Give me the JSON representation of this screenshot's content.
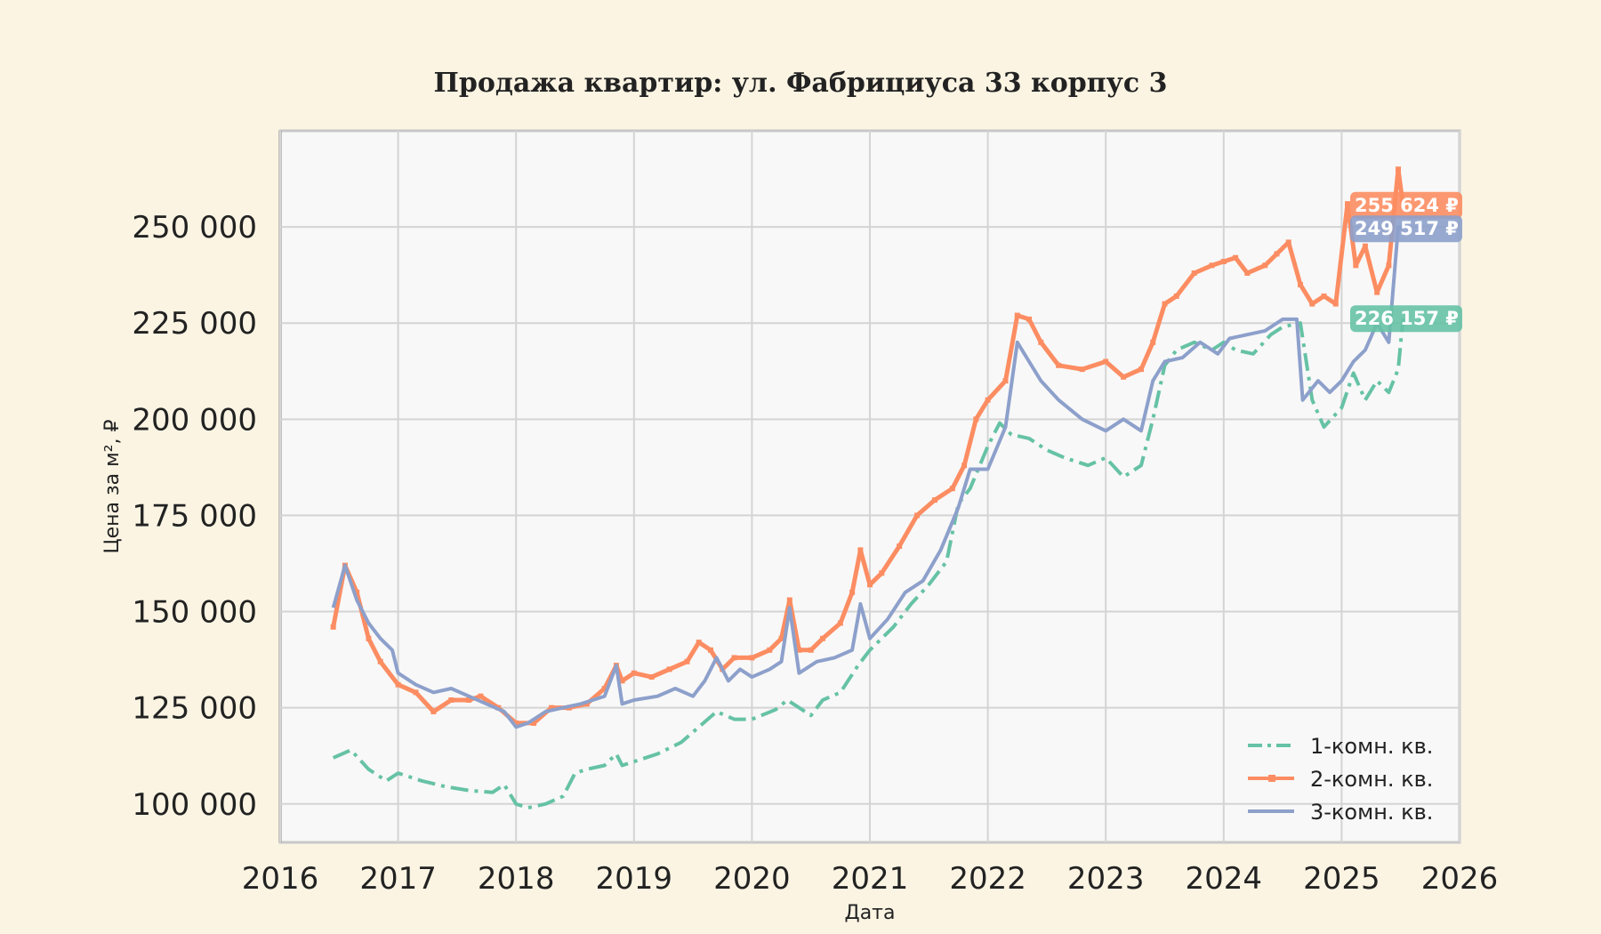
{
  "chart_data": {
    "type": "line",
    "title": "Продажа квартир: ул. Фабрициуса 33 корпус 3",
    "xlabel": "Дата",
    "ylabel": "Цена за м², ₽",
    "xlim": [
      2016,
      2026
    ],
    "ylim": [
      90000,
      275000
    ],
    "x_ticks": [
      "2016",
      "2017",
      "2018",
      "2019",
      "2020",
      "2021",
      "2022",
      "2023",
      "2024",
      "2025",
      "2026"
    ],
    "y_ticks": [
      "100 000",
      "125 000",
      "150 000",
      "175 000",
      "200 000",
      "225 000",
      "250 000"
    ],
    "grid": true,
    "legend_position": "bottom-right",
    "series": [
      {
        "name": "1-комн. кв.",
        "color": "#66c2a5",
        "style": "dashdot",
        "end_label": "226 157 ₽",
        "end_value": 226157,
        "x": [
          2016.45,
          2016.6,
          2016.75,
          2016.9,
          2017.0,
          2017.2,
          2017.4,
          2017.6,
          2017.8,
          2017.9,
          2018.0,
          2018.1,
          2018.25,
          2018.4,
          2018.5,
          2018.6,
          2018.75,
          2018.85,
          2018.9,
          2019.0,
          2019.2,
          2019.4,
          2019.55,
          2019.7,
          2019.85,
          2020.0,
          2020.2,
          2020.3,
          2020.4,
          2020.5,
          2020.6,
          2020.75,
          2020.9,
          2021.0,
          2021.1,
          2021.2,
          2021.35,
          2021.5,
          2021.65,
          2021.75,
          2021.85,
          2022.0,
          2022.1,
          2022.2,
          2022.35,
          2022.5,
          2022.65,
          2022.85,
          2023.0,
          2023.15,
          2023.3,
          2023.4,
          2023.5,
          2023.6,
          2023.75,
          2023.9,
          2024.0,
          2024.1,
          2024.25,
          2024.4,
          2024.5,
          2024.65,
          2024.75,
          2024.85,
          2025.0,
          2025.1,
          2025.2,
          2025.3,
          2025.4,
          2025.48,
          2025.52
        ],
        "y": [
          112000,
          114000,
          109000,
          106000,
          108000,
          106000,
          104500,
          103500,
          103000,
          105000,
          100000,
          99000,
          100000,
          102000,
          108000,
          109000,
          110000,
          113000,
          110000,
          111000,
          113000,
          116000,
          120000,
          124000,
          122000,
          122000,
          124500,
          127000,
          125000,
          123000,
          127000,
          129000,
          136000,
          140000,
          143000,
          146000,
          152000,
          157000,
          163000,
          178000,
          182000,
          193000,
          199000,
          196000,
          195000,
          192000,
          190000,
          188000,
          190000,
          185000,
          188000,
          200000,
          214000,
          218000,
          220000,
          218000,
          220000,
          218000,
          217000,
          222000,
          224000,
          225000,
          205000,
          198000,
          203000,
          212000,
          205000,
          210000,
          207000,
          213000,
          226157
        ]
      },
      {
        "name": "2-комн. кв.",
        "color": "#fc8d62",
        "style": "solid-marker",
        "end_label": "255 624 ₽",
        "end_value": 255624,
        "x": [
          2016.45,
          2016.55,
          2016.65,
          2016.75,
          2016.85,
          2017.0,
          2017.15,
          2017.3,
          2017.45,
          2017.6,
          2017.7,
          2017.85,
          2018.0,
          2018.15,
          2018.3,
          2018.45,
          2018.6,
          2018.75,
          2018.85,
          2018.9,
          2019.0,
          2019.15,
          2019.3,
          2019.45,
          2019.55,
          2019.65,
          2019.75,
          2019.85,
          2020.0,
          2020.15,
          2020.25,
          2020.32,
          2020.4,
          2020.5,
          2020.6,
          2020.75,
          2020.85,
          2020.92,
          2021.0,
          2021.1,
          2021.25,
          2021.4,
          2021.55,
          2021.7,
          2021.8,
          2021.9,
          2022.0,
          2022.15,
          2022.25,
          2022.35,
          2022.45,
          2022.6,
          2022.8,
          2023.0,
          2023.15,
          2023.3,
          2023.4,
          2023.5,
          2023.6,
          2023.75,
          2023.9,
          2024.0,
          2024.1,
          2024.2,
          2024.35,
          2024.45,
          2024.55,
          2024.65,
          2024.75,
          2024.85,
          2024.95,
          2025.05,
          2025.12,
          2025.2,
          2025.3,
          2025.4,
          2025.48,
          2025.52
        ],
        "y": [
          146000,
          162000,
          155000,
          143000,
          137000,
          131000,
          129000,
          124000,
          127000,
          127000,
          128000,
          125000,
          121000,
          121000,
          125000,
          125000,
          126000,
          130000,
          136000,
          132000,
          134000,
          133000,
          135000,
          137000,
          142000,
          140000,
          135000,
          138000,
          138000,
          140000,
          143000,
          153000,
          140000,
          140000,
          143000,
          147000,
          155000,
          166000,
          157000,
          160000,
          167000,
          175000,
          179000,
          182000,
          188000,
          200000,
          205000,
          210000,
          227000,
          226000,
          220000,
          214000,
          213000,
          215000,
          211000,
          213000,
          220000,
          230000,
          232000,
          238000,
          240000,
          241000,
          242000,
          238000,
          240000,
          243000,
          246000,
          235000,
          230000,
          232000,
          230000,
          256000,
          240000,
          245000,
          233000,
          240000,
          265000,
          255624
        ]
      },
      {
        "name": "3-комн. кв.",
        "color": "#8da0cb",
        "style": "solid",
        "end_label": "249 517 ₽",
        "end_value": 249517,
        "x": [
          2016.45,
          2016.55,
          2016.65,
          2016.75,
          2016.85,
          2016.95,
          2017.0,
          2017.15,
          2017.3,
          2017.45,
          2017.6,
          2017.75,
          2017.9,
          2018.0,
          2018.1,
          2018.25,
          2018.4,
          2018.55,
          2018.65,
          2018.75,
          2018.85,
          2018.9,
          2019.0,
          2019.2,
          2019.35,
          2019.5,
          2019.6,
          2019.7,
          2019.8,
          2019.9,
          2020.0,
          2020.15,
          2020.25,
          2020.32,
          2020.4,
          2020.55,
          2020.7,
          2020.85,
          2020.92,
          2021.0,
          2021.15,
          2021.3,
          2021.45,
          2021.6,
          2021.75,
          2021.85,
          2022.0,
          2022.15,
          2022.25,
          2022.35,
          2022.45,
          2022.6,
          2022.8,
          2023.0,
          2023.15,
          2023.3,
          2023.4,
          2023.5,
          2023.65,
          2023.8,
          2023.95,
          2024.05,
          2024.2,
          2024.35,
          2024.5,
          2024.62,
          2024.67,
          2024.8,
          2024.9,
          2025.0,
          2025.1,
          2025.2,
          2025.3,
          2025.4,
          2025.48,
          2025.52
        ],
        "y": [
          151000,
          162000,
          153000,
          147000,
          143000,
          140000,
          134000,
          131000,
          129000,
          130000,
          128000,
          126000,
          124000,
          120000,
          121000,
          124000,
          125000,
          126000,
          127000,
          128000,
          136000,
          126000,
          127000,
          128000,
          130000,
          128000,
          132000,
          138000,
          132000,
          135000,
          133000,
          135000,
          137000,
          151000,
          134000,
          137000,
          138000,
          140000,
          152000,
          143000,
          148000,
          155000,
          158000,
          166000,
          177000,
          187000,
          187000,
          198000,
          220000,
          215000,
          210000,
          205000,
          200000,
          197000,
          200000,
          197000,
          210000,
          215000,
          216000,
          220000,
          217000,
          221000,
          222000,
          223000,
          226000,
          226000,
          205000,
          210000,
          207000,
          210000,
          215000,
          218000,
          225000,
          220000,
          250000,
          249517
        ]
      }
    ]
  }
}
